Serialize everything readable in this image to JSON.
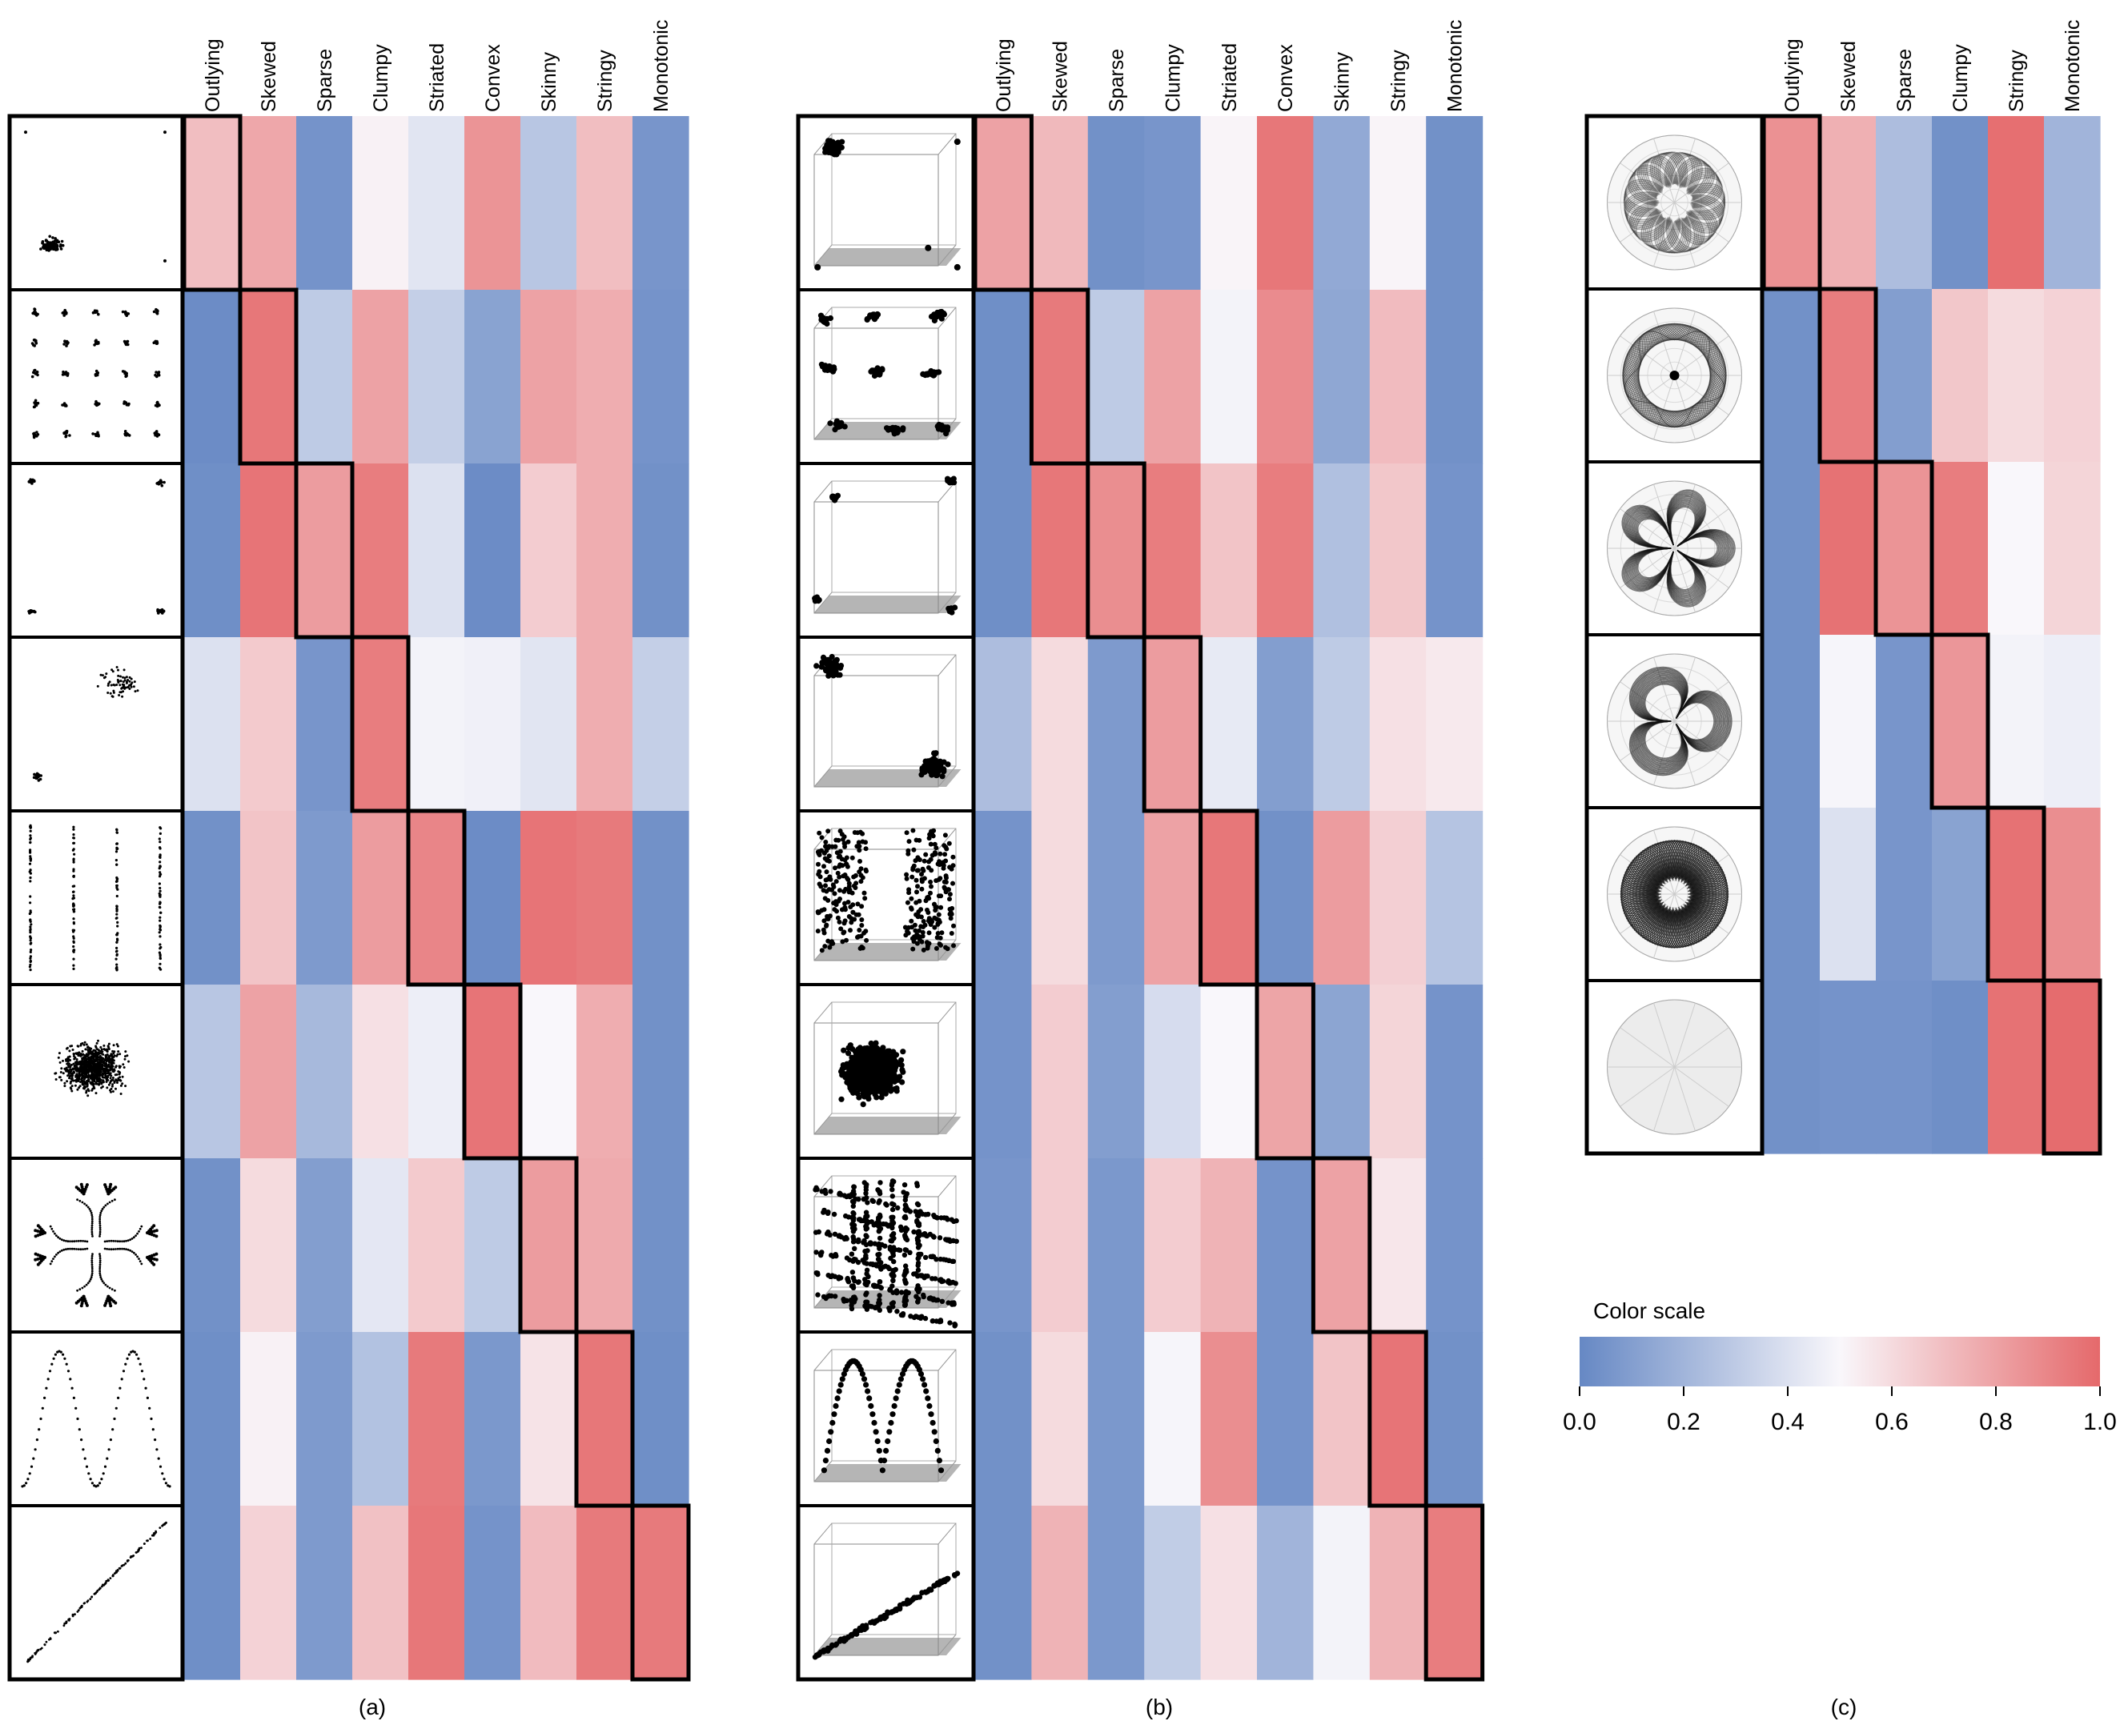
{
  "color_scale": {
    "title": "Color scale",
    "ticks": [
      "0.0",
      "0.2",
      "0.4",
      "0.6",
      "0.8",
      "1.0"
    ],
    "low_color": "#6688c4",
    "mid_color": "#f9f7fb",
    "high_color": "#e5696b"
  },
  "chart_data": [
    {
      "type": "heatmap",
      "panel_label": "(a)",
      "thumbnail_kind": "2D scatterplots",
      "columns": [
        "Outlying",
        "Skewed",
        "Sparse",
        "Clumpy",
        "Striated",
        "Convex",
        "Skinny",
        "Stringy",
        "Monotonic"
      ],
      "highlight": [
        0,
        1,
        2,
        3,
        4,
        5,
        6,
        7,
        8
      ],
      "values": [
        [
          0.7,
          0.78,
          0.05,
          0.52,
          0.42,
          0.85,
          0.28,
          0.7,
          0.06
        ],
        [
          0.02,
          0.95,
          0.3,
          0.8,
          0.32,
          0.12,
          0.8,
          0.76,
          0.05
        ],
        [
          0.03,
          0.96,
          0.82,
          0.93,
          0.4,
          0.02,
          0.65,
          0.76,
          0.04
        ],
        [
          0.4,
          0.66,
          0.06,
          0.93,
          0.48,
          0.47,
          0.42,
          0.76,
          0.32
        ],
        [
          0.04,
          0.68,
          0.08,
          0.82,
          0.9,
          0.02,
          0.96,
          0.94,
          0.04
        ],
        [
          0.28,
          0.8,
          0.22,
          0.58,
          0.46,
          0.96,
          0.5,
          0.76,
          0.04
        ],
        [
          0.04,
          0.6,
          0.1,
          0.43,
          0.66,
          0.3,
          0.82,
          0.77,
          0.04
        ],
        [
          0.03,
          0.52,
          0.08,
          0.26,
          0.94,
          0.07,
          0.57,
          0.95,
          0.03
        ],
        [
          0.03,
          0.63,
          0.08,
          0.69,
          0.95,
          0.05,
          0.71,
          0.94,
          0.94
        ]
      ]
    },
    {
      "type": "heatmap",
      "panel_label": "(b)",
      "thumbnail_kind": "3D scatterplots",
      "columns": [
        "Outlying",
        "Skewed",
        "Sparse",
        "Clumpy",
        "Striated",
        "Convex",
        "Skinny",
        "Stringy",
        "Monotonic"
      ],
      "highlight": [
        0,
        1,
        2,
        3,
        4,
        5,
        6,
        7,
        8
      ],
      "values": [
        [
          0.8,
          0.72,
          0.04,
          0.06,
          0.51,
          0.95,
          0.15,
          0.51,
          0.04
        ],
        [
          0.03,
          0.94,
          0.3,
          0.8,
          0.48,
          0.88,
          0.14,
          0.71,
          0.04
        ],
        [
          0.03,
          0.95,
          0.87,
          0.93,
          0.68,
          0.93,
          0.25,
          0.67,
          0.05
        ],
        [
          0.24,
          0.6,
          0.08,
          0.82,
          0.44,
          0.1,
          0.3,
          0.58,
          0.55
        ],
        [
          0.05,
          0.6,
          0.08,
          0.8,
          0.95,
          0.04,
          0.82,
          0.64,
          0.27
        ],
        [
          0.05,
          0.65,
          0.1,
          0.38,
          0.5,
          0.79,
          0.13,
          0.62,
          0.05
        ],
        [
          0.06,
          0.65,
          0.07,
          0.65,
          0.74,
          0.05,
          0.8,
          0.56,
          0.05
        ],
        [
          0.04,
          0.6,
          0.07,
          0.49,
          0.87,
          0.05,
          0.68,
          0.96,
          0.04
        ],
        [
          0.04,
          0.74,
          0.07,
          0.31,
          0.58,
          0.2,
          0.48,
          0.74,
          0.93
        ]
      ]
    },
    {
      "type": "heatmap",
      "panel_label": "(c)",
      "thumbnail_kind": "radar charts",
      "columns": [
        "Outlying",
        "Skewed",
        "Sparse",
        "Clumpy",
        "Stringy",
        "Monotonic"
      ],
      "highlight": [
        0,
        1,
        2,
        3,
        4,
        5
      ],
      "values": [
        [
          0.86,
          0.75,
          0.24,
          0.04,
          0.98,
          0.2
        ],
        [
          0.04,
          0.93,
          0.1,
          0.67,
          0.6,
          0.63
        ],
        [
          0.04,
          0.97,
          0.85,
          0.93,
          0.5,
          0.62
        ],
        [
          0.04,
          0.49,
          0.06,
          0.84,
          0.48,
          0.46
        ],
        [
          0.04,
          0.4,
          0.06,
          0.12,
          0.97,
          0.87
        ],
        [
          0.04,
          0.05,
          0.05,
          0.03,
          0.97,
          0.99
        ]
      ]
    }
  ]
}
